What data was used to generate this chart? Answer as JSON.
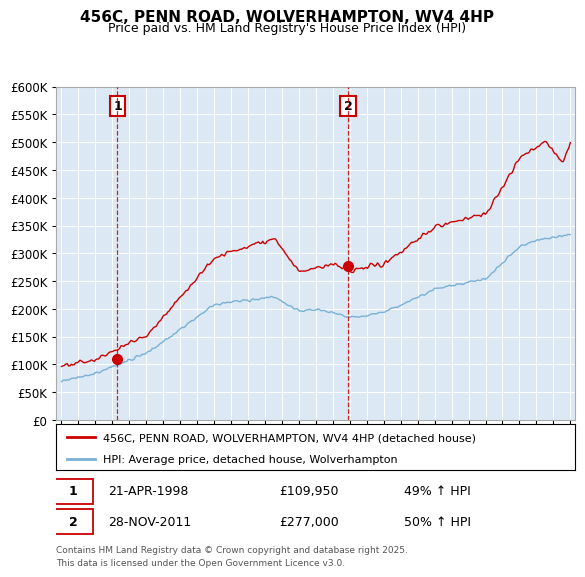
{
  "title": "456C, PENN ROAD, WOLVERHAMPTON, WV4 4HP",
  "subtitle": "Price paid vs. HM Land Registry's House Price Index (HPI)",
  "property_label": "456C, PENN ROAD, WOLVERHAMPTON, WV4 4HP (detached house)",
  "hpi_label": "HPI: Average price, detached house, Wolverhampton",
  "sale1_num": "1",
  "sale1_label": "21-APR-1998",
  "sale1_price": "£109,950",
  "sale1_hpi": "49% ↑ HPI",
  "sale1_x": 1998.3,
  "sale1_y": 109950,
  "sale2_num": "2",
  "sale2_label": "28-NOV-2011",
  "sale2_price": "£277,000",
  "sale2_hpi": "50% ↑ HPI",
  "sale2_x": 2011.9,
  "sale2_y": 277000,
  "footer": "Contains HM Land Registry data © Crown copyright and database right 2025.\nThis data is licensed under the Open Government Licence v3.0.",
  "ylim": [
    0,
    600000
  ],
  "xlim_left": 1994.7,
  "xlim_right": 2025.3,
  "property_color": "#cc0000",
  "hpi_color": "#7ab0d4",
  "sale_dot_color": "#cc0000",
  "vline_color": "#cc0000",
  "chart_bg_color": "#dce9f5",
  "fig_bg_color": "#ffffff",
  "grid_color": "#ffffff",
  "title_fontsize": 11,
  "subtitle_fontsize": 9
}
